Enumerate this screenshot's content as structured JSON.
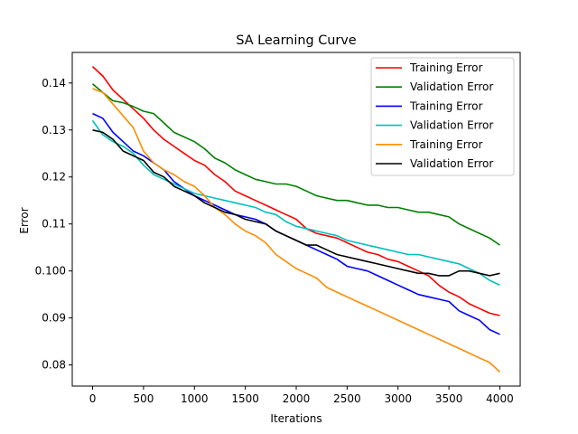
{
  "chart_data": {
    "type": "line",
    "title": "SA Learning Curve",
    "xlabel": "Iterations",
    "ylabel": "Error",
    "xlim": [
      -200,
      4200
    ],
    "ylim": [
      0.0755,
      0.1465
    ],
    "x_ticks": [
      0,
      500,
      1000,
      1500,
      2000,
      2500,
      3000,
      3500,
      4000
    ],
    "y_ticks": [
      0.08,
      0.09,
      0.1,
      0.11,
      0.12,
      0.13,
      0.14
    ],
    "y_tick_labels": [
      "0.08",
      "0.09",
      "0.100",
      "0.11",
      "0.12",
      "0.13",
      "0.14"
    ],
    "grid": false,
    "legend_position": "top-right",
    "series": [
      {
        "name": "Training Error",
        "color": "#ff0000",
        "x": [
          0,
          100,
          200,
          300,
          400,
          500,
          600,
          700,
          800,
          900,
          1000,
          1100,
          1200,
          1300,
          1400,
          1500,
          1600,
          1700,
          1800,
          1900,
          2000,
          2100,
          2200,
          2300,
          2400,
          2500,
          2600,
          2700,
          2800,
          2900,
          3000,
          3100,
          3200,
          3300,
          3400,
          3500,
          3600,
          3700,
          3800,
          3900,
          4000
        ],
        "values": [
          0.1435,
          0.1415,
          0.1385,
          0.1365,
          0.1345,
          0.1325,
          0.13,
          0.128,
          0.1265,
          0.125,
          0.1235,
          0.1225,
          0.1205,
          0.119,
          0.117,
          0.116,
          0.115,
          0.114,
          0.113,
          0.112,
          0.111,
          0.109,
          0.108,
          0.1075,
          0.107,
          0.106,
          0.105,
          0.104,
          0.1035,
          0.1025,
          0.102,
          0.101,
          0.1,
          0.099,
          0.097,
          0.0955,
          0.0945,
          0.093,
          0.092,
          0.091,
          0.0905
        ]
      },
      {
        "name": "Validation Error",
        "color": "#008000",
        "x": [
          0,
          100,
          200,
          300,
          400,
          500,
          600,
          700,
          800,
          900,
          1000,
          1100,
          1200,
          1300,
          1400,
          1500,
          1600,
          1700,
          1800,
          1900,
          2000,
          2100,
          2200,
          2300,
          2400,
          2500,
          2600,
          2700,
          2800,
          2900,
          3000,
          3100,
          3200,
          3300,
          3400,
          3500,
          3600,
          3700,
          3800,
          3900,
          4000
        ],
        "values": [
          0.1398,
          0.138,
          0.1362,
          0.1358,
          0.135,
          0.134,
          0.1335,
          0.1315,
          0.1295,
          0.1285,
          0.1275,
          0.126,
          0.124,
          0.123,
          0.1215,
          0.1205,
          0.1195,
          0.119,
          0.1185,
          0.1185,
          0.118,
          0.117,
          0.116,
          0.1155,
          0.115,
          0.115,
          0.1145,
          0.114,
          0.114,
          0.1135,
          0.1135,
          0.113,
          0.1125,
          0.1125,
          0.112,
          0.1115,
          0.11,
          0.109,
          0.108,
          0.107,
          0.1055
        ]
      },
      {
        "name": "Training Error",
        "color": "#0000ff",
        "x": [
          0,
          100,
          200,
          300,
          400,
          500,
          600,
          700,
          800,
          900,
          1000,
          1100,
          1200,
          1300,
          1400,
          1500,
          1600,
          1700,
          1800,
          1900,
          2000,
          2100,
          2200,
          2300,
          2400,
          2500,
          2600,
          2700,
          2800,
          2900,
          3000,
          3100,
          3200,
          3300,
          3400,
          3500,
          3600,
          3700,
          3800,
          3900,
          4000
        ],
        "values": [
          0.1335,
          0.1325,
          0.1295,
          0.1275,
          0.1255,
          0.1245,
          0.123,
          0.1215,
          0.119,
          0.1175,
          0.116,
          0.115,
          0.114,
          0.113,
          0.112,
          0.1115,
          0.111,
          0.11,
          0.1085,
          0.1075,
          0.1065,
          0.1055,
          0.1045,
          0.1035,
          0.1025,
          0.101,
          0.1005,
          0.1,
          0.099,
          0.098,
          0.097,
          0.096,
          0.095,
          0.0945,
          0.094,
          0.0935,
          0.0915,
          0.0905,
          0.0895,
          0.0875,
          0.0865
        ]
      },
      {
        "name": "Validation Error",
        "color": "#00bfbf",
        "x": [
          0,
          100,
          200,
          300,
          400,
          500,
          600,
          700,
          800,
          900,
          1000,
          1100,
          1200,
          1300,
          1400,
          1500,
          1600,
          1700,
          1800,
          1900,
          2000,
          2100,
          2200,
          2300,
          2400,
          2500,
          2600,
          2700,
          2800,
          2900,
          3000,
          3100,
          3200,
          3300,
          3400,
          3500,
          3600,
          3700,
          3800,
          3900,
          4000
        ],
        "values": [
          0.132,
          0.129,
          0.1275,
          0.1265,
          0.125,
          0.1225,
          0.1205,
          0.1195,
          0.1185,
          0.1175,
          0.1165,
          0.116,
          0.1155,
          0.115,
          0.1145,
          0.114,
          0.1135,
          0.1125,
          0.112,
          0.1105,
          0.1095,
          0.109,
          0.1085,
          0.108,
          0.1075,
          0.1065,
          0.106,
          0.1055,
          0.105,
          0.1045,
          0.104,
          0.1035,
          0.1035,
          0.103,
          0.1025,
          0.102,
          0.1015,
          0.1005,
          0.0995,
          0.098,
          0.097
        ]
      },
      {
        "name": "Training Error",
        "color": "#ff8c00",
        "x": [
          0,
          100,
          200,
          300,
          400,
          500,
          600,
          700,
          800,
          900,
          1000,
          1100,
          1200,
          1300,
          1400,
          1500,
          1600,
          1700,
          1800,
          1900,
          2000,
          2100,
          2200,
          2300,
          2400,
          2500,
          2600,
          2700,
          2800,
          2900,
          3000,
          3100,
          3200,
          3300,
          3400,
          3500,
          3600,
          3700,
          3800,
          3900,
          4000
        ],
        "values": [
          0.1388,
          0.138,
          0.1355,
          0.133,
          0.1305,
          0.1255,
          0.123,
          0.1215,
          0.1205,
          0.119,
          0.118,
          0.116,
          0.1135,
          0.112,
          0.11,
          0.1085,
          0.1075,
          0.106,
          0.1035,
          0.102,
          0.1005,
          0.0995,
          0.0985,
          0.0965,
          0.0955,
          0.0945,
          0.0935,
          0.0925,
          0.0915,
          0.0905,
          0.0895,
          0.0885,
          0.0875,
          0.0865,
          0.0855,
          0.0845,
          0.0835,
          0.0825,
          0.0815,
          0.0805,
          0.0785
        ]
      },
      {
        "name": "Validation Error",
        "color": "#000000",
        "x": [
          0,
          100,
          200,
          300,
          400,
          500,
          600,
          700,
          800,
          900,
          1000,
          1100,
          1200,
          1300,
          1400,
          1500,
          1600,
          1700,
          1800,
          1900,
          2000,
          2100,
          2200,
          2300,
          2400,
          2500,
          2600,
          2700,
          2800,
          2900,
          3000,
          3100,
          3200,
          3300,
          3400,
          3500,
          3600,
          3700,
          3800,
          3900,
          4000
        ],
        "values": [
          0.13,
          0.1295,
          0.128,
          0.1255,
          0.1245,
          0.1235,
          0.121,
          0.12,
          0.118,
          0.117,
          0.116,
          0.1145,
          0.1135,
          0.1125,
          0.112,
          0.111,
          0.1105,
          0.11,
          0.1085,
          0.1075,
          0.1065,
          0.1055,
          0.1055,
          0.1045,
          0.1035,
          0.103,
          0.1025,
          0.102,
          0.1015,
          0.101,
          0.1005,
          0.1,
          0.0995,
          0.0995,
          0.099,
          0.099,
          0.1,
          0.1,
          0.0995,
          0.099,
          0.0995
        ]
      }
    ]
  }
}
